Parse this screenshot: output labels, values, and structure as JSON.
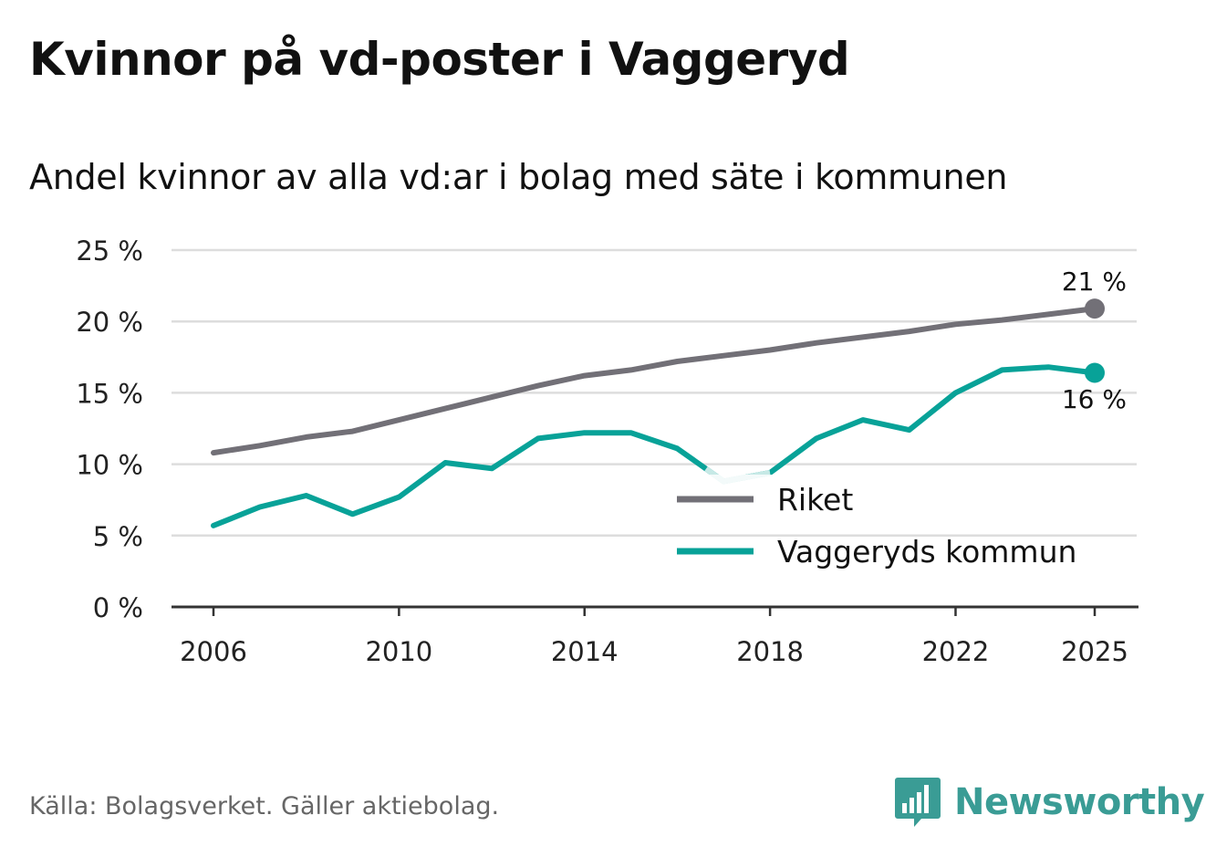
{
  "header": {
    "title": "Kvinnor på vd-poster i Vaggeryd",
    "subtitle": "Andel kvinnor av alla vd:ar i bolag med säte i kommunen"
  },
  "footer": {
    "source": "Källa: Bolagsverket. Gäller aktiebolag.",
    "brand": "Newsworthy"
  },
  "colors": {
    "riket": "#727077",
    "vaggeryd": "#08a298",
    "vaggeryd_faded": "#c6e9e6",
    "grid": "#dddddd",
    "axis": "#333333"
  },
  "chart_data": {
    "type": "line",
    "title": "Kvinnor på vd-poster i Vaggeryd",
    "xlabel": "",
    "ylabel": "",
    "ylim": [
      0,
      25
    ],
    "y_ticks": [
      0,
      5,
      10,
      15,
      20,
      25
    ],
    "y_tick_labels": [
      "0 %",
      "5 %",
      "10 %",
      "15 %",
      "20 %",
      "25 %"
    ],
    "x_ticks": [
      2006,
      2010,
      2014,
      2018,
      2022,
      2025
    ],
    "x_tick_labels": [
      "2006",
      "2010",
      "2014",
      "2018",
      "2022",
      "2025"
    ],
    "x": [
      2006,
      2007,
      2008,
      2009,
      2010,
      2011,
      2012,
      2013,
      2014,
      2015,
      2016,
      2017,
      2018,
      2019,
      2020,
      2021,
      2022,
      2023,
      2024,
      2025
    ],
    "series": [
      {
        "name": "Riket",
        "values": [
          10.8,
          11.3,
          11.9,
          12.3,
          13.1,
          13.9,
          14.7,
          15.5,
          16.2,
          16.6,
          17.2,
          17.6,
          18.0,
          18.5,
          18.9,
          19.3,
          19.8,
          20.1,
          20.5,
          20.9
        ],
        "end_label": "21 %"
      },
      {
        "name": "Vaggeryds kommun",
        "values": [
          5.7,
          7.0,
          7.8,
          6.5,
          7.7,
          10.1,
          9.7,
          11.8,
          12.2,
          12.2,
          11.1,
          8.8,
          9.4,
          11.8,
          13.1,
          12.4,
          15.0,
          16.6,
          16.8,
          16.4
        ],
        "end_label": "16 %"
      }
    ],
    "legend": [
      "Riket",
      "Vaggeryds kommun"
    ],
    "legend_position": "bottom-right",
    "grid": true
  }
}
